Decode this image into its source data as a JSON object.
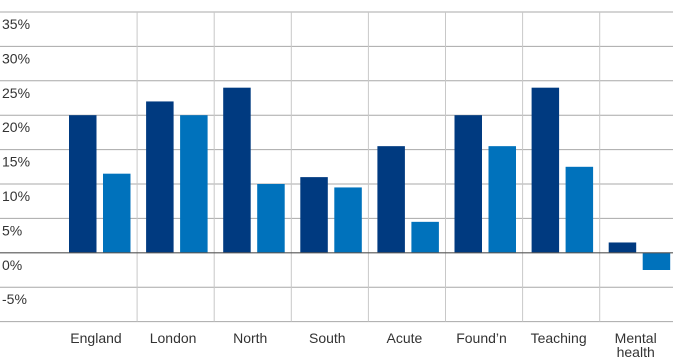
{
  "chart_data": {
    "type": "bar",
    "categories": [
      "England",
      "London",
      "North",
      "South",
      "Acute",
      "Found’n",
      "Teaching",
      "Mental health"
    ],
    "category_label_lines": [
      [
        "England"
      ],
      [
        "London"
      ],
      [
        "North"
      ],
      [
        "South"
      ],
      [
        "Acute"
      ],
      [
        "Found’n"
      ],
      [
        "Teaching"
      ],
      [
        "Mental",
        "health"
      ]
    ],
    "series": [
      {
        "values": [
          20,
          22,
          24,
          11,
          15.5,
          20,
          24,
          1.5
        ],
        "color": "#003a80"
      },
      {
        "values": [
          11.5,
          20,
          10,
          9.5,
          4.5,
          15.5,
          12.5,
          -2.5
        ],
        "color": "#0072bc"
      }
    ],
    "y_ticks": [
      "35%",
      "30%",
      "25%",
      "20%",
      "15%",
      "10%",
      "5%",
      "0%",
      "-5%"
    ],
    "ylim": [
      -10,
      35
    ],
    "y_tick_values": [
      35,
      30,
      25,
      20,
      15,
      10,
      5,
      0,
      -5
    ],
    "grid": true,
    "title": "",
    "xlabel": "",
    "ylabel": ""
  }
}
